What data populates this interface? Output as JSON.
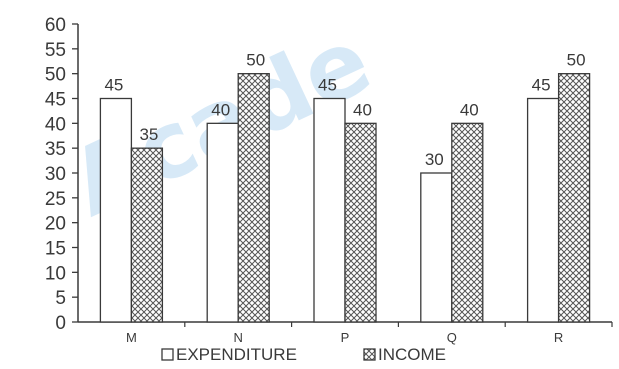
{
  "watermark": "Acade",
  "legend": {
    "position": "bottom-center"
  },
  "colors": {
    "axis": "#3a3a3a",
    "expenditure_fill": "#ffffff",
    "income_pattern": "#555555",
    "text": "#3a3a3a"
  },
  "chart_data": {
    "type": "bar",
    "title": "",
    "xlabel": "",
    "ylabel": "",
    "categories": [
      "M",
      "N",
      "P",
      "Q",
      "R"
    ],
    "series": [
      {
        "name": "EXPENDITURE",
        "values": [
          45,
          40,
          45,
          30,
          45
        ]
      },
      {
        "name": "INCOME",
        "values": [
          35,
          50,
          40,
          40,
          50
        ]
      }
    ],
    "ylim": [
      0,
      60
    ],
    "yticks": [
      0,
      5,
      10,
      15,
      20,
      25,
      30,
      35,
      40,
      45,
      50,
      55,
      60
    ],
    "grid": false
  }
}
